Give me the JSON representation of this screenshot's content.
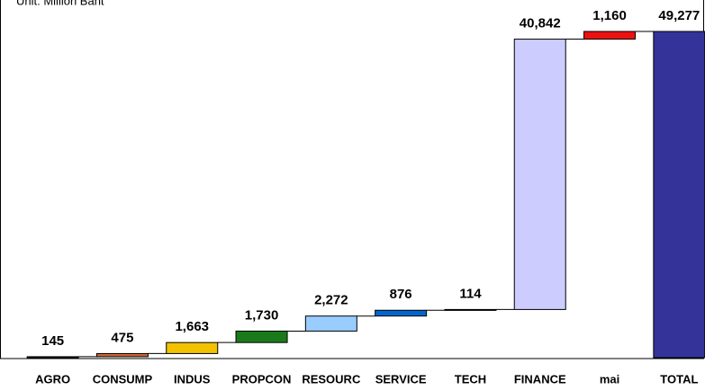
{
  "chart_data": {
    "type": "waterfall",
    "subtitle": "Unit: Million Baht",
    "categories": [
      "AGRO",
      "CONSUMP",
      "INDUS",
      "PROPCON",
      "RESOURC",
      "SERVICE",
      "TECH",
      "FINANCE",
      "mai",
      "TOTAL"
    ],
    "values": [
      145,
      475,
      1663,
      1730,
      2272,
      876,
      114,
      40842,
      1160,
      49277
    ],
    "value_labels": [
      "145",
      "475",
      "1,663",
      "1,730",
      "2,272",
      "876",
      "114",
      "40,842",
      "1,160",
      "49,277"
    ],
    "colors": [
      "#cc6633",
      "#cc6633",
      "#f2c200",
      "#1a7a1a",
      "#99ccff",
      "#0066cc",
      "#1a7a1a",
      "#ccccff",
      "#ee1111",
      "#333399"
    ]
  }
}
